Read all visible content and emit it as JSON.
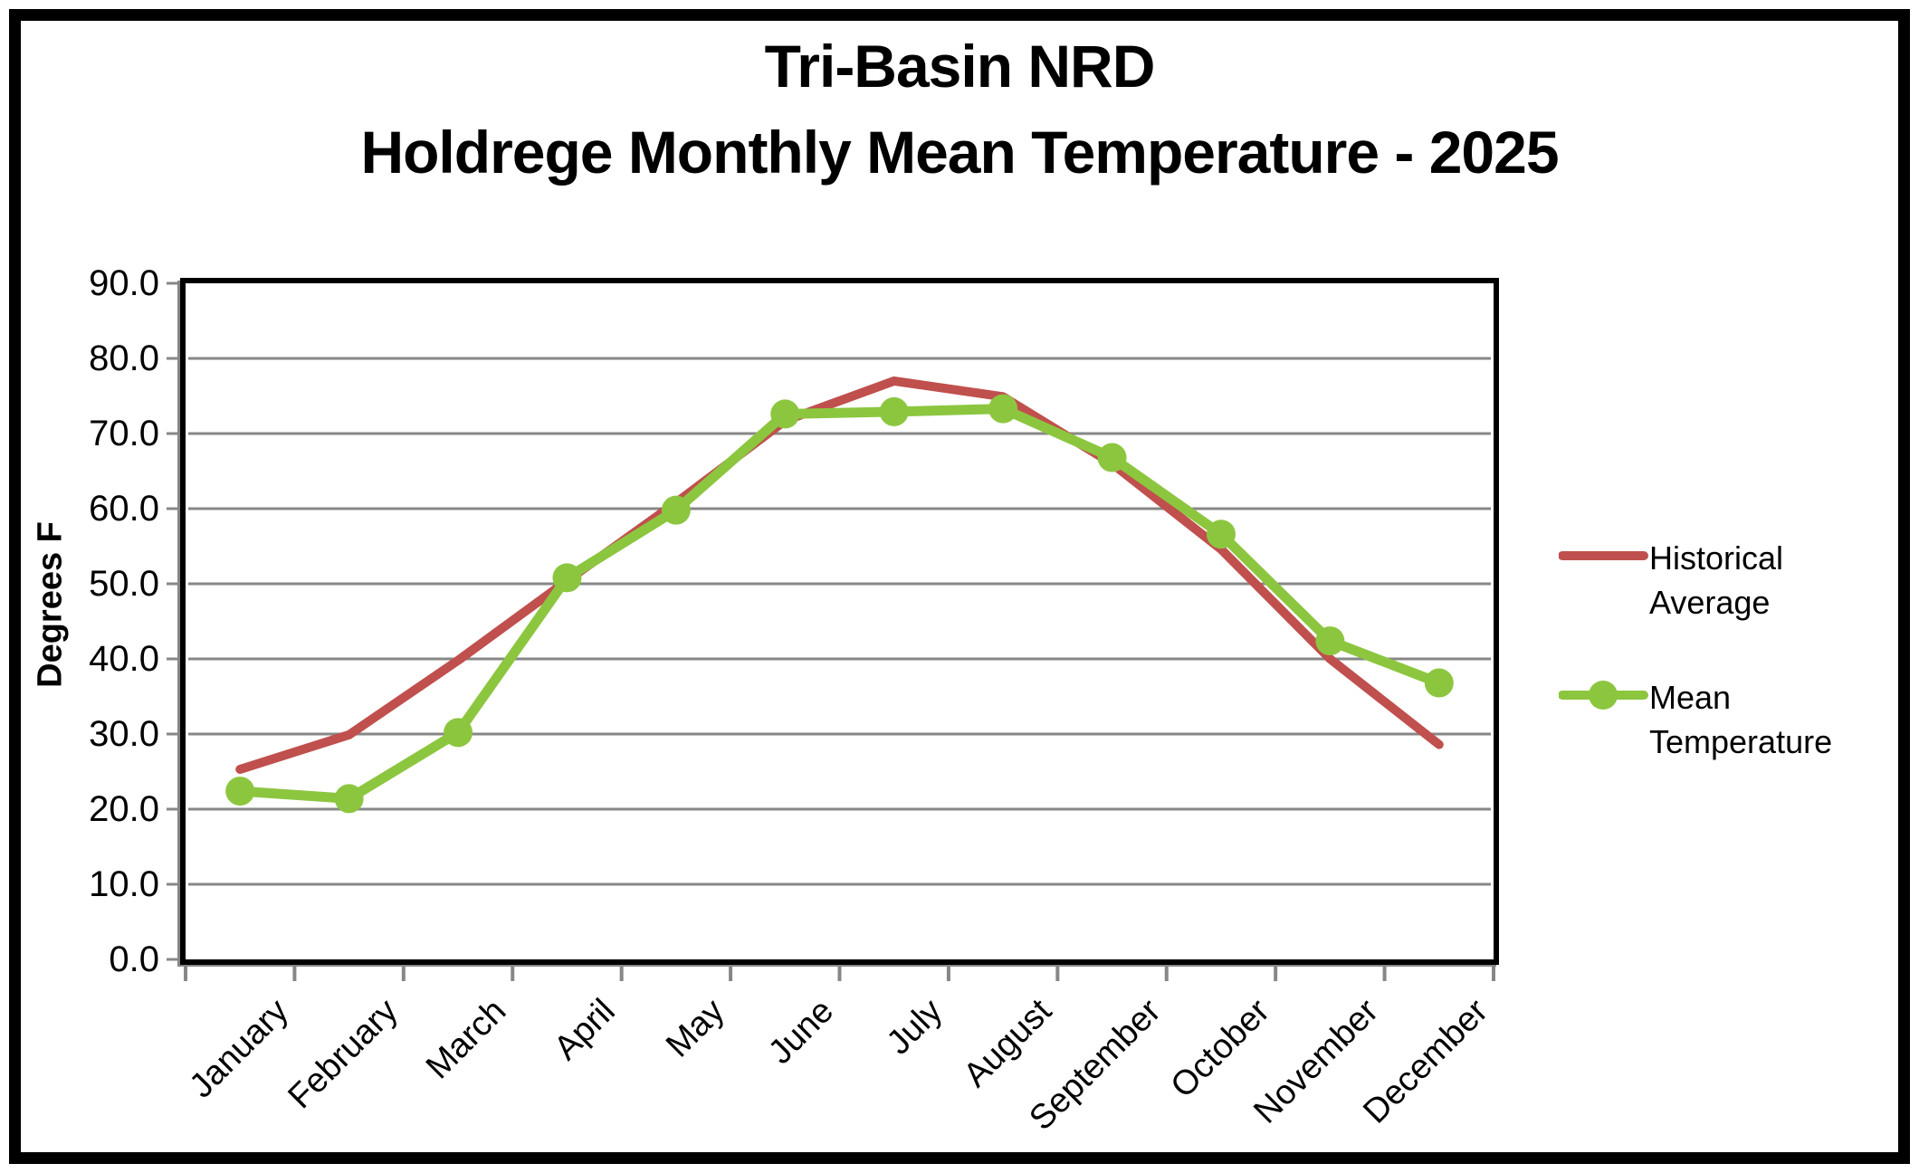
{
  "title": {
    "line1": "Tri-Basin NRD",
    "line2": "Holdrege Monthly Mean Temperature - 2025"
  },
  "y_axis": {
    "title": "Degrees F",
    "tick_labels": [
      "90.0",
      "80.0",
      "70.0",
      "60.0",
      "50.0",
      "40.0",
      "30.0",
      "20.0",
      "10.0",
      "0.0"
    ]
  },
  "legend": {
    "items": [
      {
        "label": "Historical Average",
        "color": "#C0504D",
        "marker": "none"
      },
      {
        "label": "Mean Temperature",
        "color": "#8CC63F",
        "marker": "circle"
      }
    ]
  },
  "colors": {
    "historical": "#C0504D",
    "mean": "#8CC63F",
    "gridline": "#878787",
    "axis_border": "#000000"
  },
  "chart_data": {
    "type": "line",
    "title": "Tri-Basin NRD Holdrege Monthly Mean Temperature - 2025",
    "categories": [
      "January",
      "February",
      "March",
      "April",
      "May",
      "June",
      "July",
      "August",
      "September",
      "October",
      "November",
      "December"
    ],
    "series": [
      {
        "name": "Historical Average",
        "color": "#C0504D",
        "marker": "none",
        "values": [
          25.3,
          29.9,
          39.8,
          50.4,
          60.8,
          71.7,
          77.0,
          74.9,
          66.0,
          54.6,
          40.0,
          28.6
        ]
      },
      {
        "name": "Mean Temperature",
        "color": "#8CC63F",
        "marker": "circle",
        "values": [
          22.4,
          21.4,
          30.2,
          50.8,
          59.8,
          72.6,
          72.9,
          73.3,
          66.8,
          56.6,
          42.4,
          36.8
        ]
      }
    ],
    "xlabel": "",
    "ylabel": "Degrees F",
    "ylim": [
      0,
      90
    ],
    "ytick_step": 10,
    "grid": true,
    "legend_position": "right"
  }
}
